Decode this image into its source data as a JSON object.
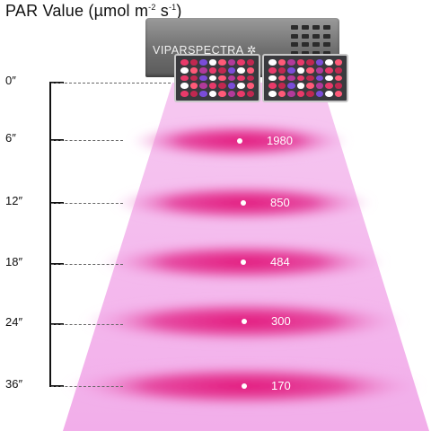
{
  "title": {
    "text": "PAR Value (µmol m",
    "exp1": "-2",
    "mid": " s",
    "exp2": "-1",
    "close": ")"
  },
  "fixture": {
    "brand": "VIPARSPECTRA"
  },
  "scale": [
    {
      "distance": "0″",
      "par": ""
    },
    {
      "distance": "6″",
      "par": "1980"
    },
    {
      "distance": "12″",
      "par": "850"
    },
    {
      "distance": "18″",
      "par": "484"
    },
    {
      "distance": "24″",
      "par": "300"
    },
    {
      "distance": "36″",
      "par": "170"
    }
  ],
  "colors": {
    "beam": "#f3b6ee",
    "hotspot": "#e0207a",
    "housing": "#6e6e6e"
  },
  "led_colors": [
    "#e83a6a",
    "#c02850",
    "#7a4cd8",
    "#ffffff",
    "#ff5a78",
    "#b23a9a"
  ]
}
